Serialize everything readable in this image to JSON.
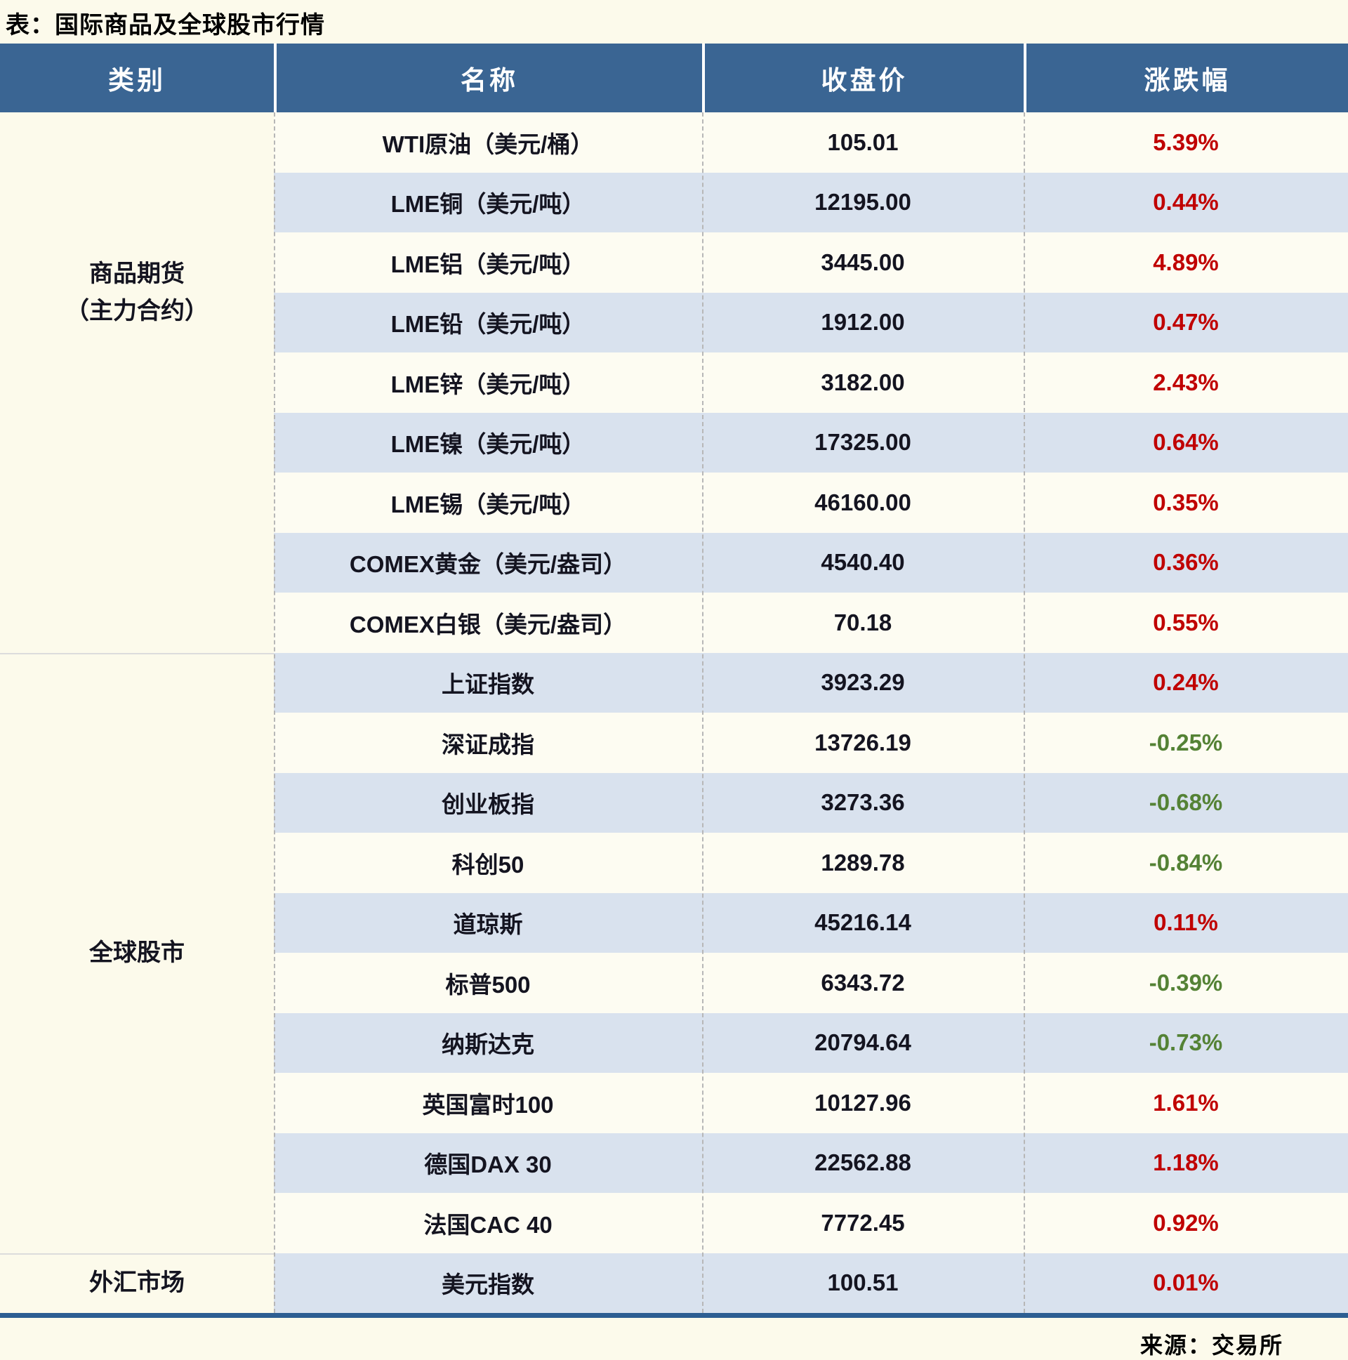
{
  "chart_data": {
    "type": "table",
    "title": "表：国际商品及全球股市行情",
    "source": "来源：交易所",
    "columns": [
      "类别",
      "名称",
      "收盘价",
      "涨跌幅"
    ],
    "groups": [
      {
        "label": "商品期货\n（主力合约）",
        "row_start": 1,
        "row_span": 9
      },
      {
        "label": "全球股市",
        "row_start": 10,
        "row_span": 10
      },
      {
        "label": "外汇市场",
        "row_start": 20,
        "row_span": 1
      }
    ],
    "rows": [
      {
        "category": "商品期货（主力合约）",
        "name": "WTI原油（美元/桶）",
        "close": "105.01",
        "change": "5.39%",
        "direction": "up"
      },
      {
        "category": "商品期货（主力合约）",
        "name": "LME铜（美元/吨）",
        "close": "12195.00",
        "change": "0.44%",
        "direction": "up"
      },
      {
        "category": "商品期货（主力合约）",
        "name": "LME铝（美元/吨）",
        "close": "3445.00",
        "change": "4.89%",
        "direction": "up"
      },
      {
        "category": "商品期货（主力合约）",
        "name": "LME铅（美元/吨）",
        "close": "1912.00",
        "change": "0.47%",
        "direction": "up"
      },
      {
        "category": "商品期货（主力合约）",
        "name": "LME锌（美元/吨）",
        "close": "3182.00",
        "change": "2.43%",
        "direction": "up"
      },
      {
        "category": "商品期货（主力合约）",
        "name": "LME镍（美元/吨）",
        "close": "17325.00",
        "change": "0.64%",
        "direction": "up"
      },
      {
        "category": "商品期货（主力合约）",
        "name": "LME锡（美元/吨）",
        "close": "46160.00",
        "change": "0.35%",
        "direction": "up"
      },
      {
        "category": "商品期货（主力合约）",
        "name": "COMEX黄金（美元/盎司）",
        "close": "4540.40",
        "change": "0.36%",
        "direction": "up"
      },
      {
        "category": "商品期货（主力合约）",
        "name": "COMEX白银（美元/盎司）",
        "close": "70.18",
        "change": "0.55%",
        "direction": "up"
      },
      {
        "category": "全球股市",
        "name": "上证指数",
        "close": "3923.29",
        "change": "0.24%",
        "direction": "up"
      },
      {
        "category": "全球股市",
        "name": "深证成指",
        "close": "13726.19",
        "change": "-0.25%",
        "direction": "down"
      },
      {
        "category": "全球股市",
        "name": "创业板指",
        "close": "3273.36",
        "change": "-0.68%",
        "direction": "down"
      },
      {
        "category": "全球股市",
        "name": "科创50",
        "close": "1289.78",
        "change": "-0.84%",
        "direction": "down"
      },
      {
        "category": "全球股市",
        "name": "道琼斯",
        "close": "45216.14",
        "change": "0.11%",
        "direction": "up"
      },
      {
        "category": "全球股市",
        "name": "标普500",
        "close": "6343.72",
        "change": "-0.39%",
        "direction": "down"
      },
      {
        "category": "全球股市",
        "name": "纳斯达克",
        "close": "20794.64",
        "change": "-0.73%",
        "direction": "down"
      },
      {
        "category": "全球股市",
        "name": "英国富时100",
        "close": "10127.96",
        "change": "1.61%",
        "direction": "up"
      },
      {
        "category": "全球股市",
        "name": "德国DAX 30",
        "close": "22562.88",
        "change": "1.18%",
        "direction": "up"
      },
      {
        "category": "全球股市",
        "name": "法国CAC 40",
        "close": "7772.45",
        "change": "0.92%",
        "direction": "up"
      },
      {
        "category": "外汇市场",
        "name": "美元指数",
        "close": "100.51",
        "change": "0.01%",
        "direction": "up"
      }
    ],
    "colors": {
      "header_bg": "#3A6593",
      "row_alt_bg": "#D9E2EE",
      "row_bg": "#FDFCF2",
      "page_bg": "#FCFAEB",
      "up": "#C00000",
      "down": "#548235",
      "text": "#141420",
      "bottom_border": "#2D5E92"
    },
    "layout": {
      "grid": "off",
      "alternating_rows": true,
      "change_up_color_meaning": "rise (red)",
      "change_down_color_meaning": "fall (green)"
    }
  }
}
